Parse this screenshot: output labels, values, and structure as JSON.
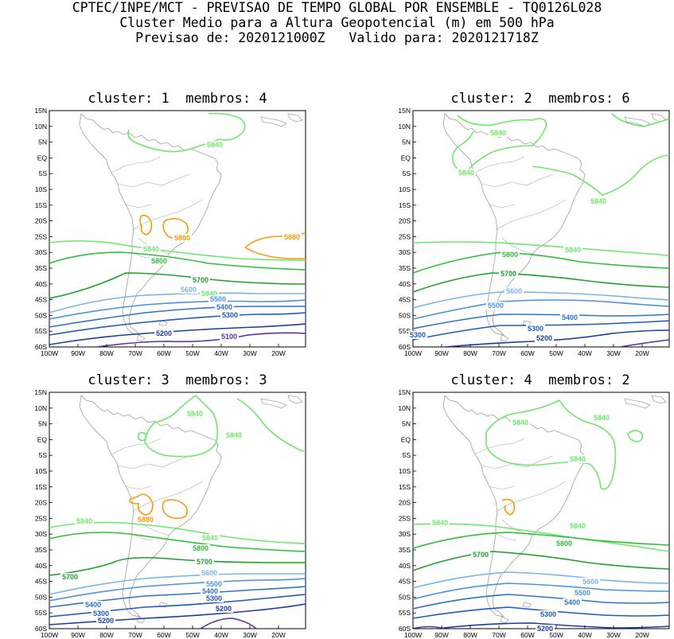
{
  "header": {
    "line1": "CPTEC/INPE/MCT - PREVISAO DE TEMPO GLOBAL POR ENSEMBLE - TQ0126L028",
    "line2": "Cluster Medio para a Altura Geopotencial (m) em 500 hPa",
    "line3": "Previsao de: 2020121000Z   Valido para: 2020121718Z"
  },
  "axes": {
    "lat_labels": [
      "15N",
      "10N",
      "5N",
      "EQ",
      "5S",
      "10S",
      "15S",
      "20S",
      "25S",
      "30S",
      "35S",
      "40S",
      "45S",
      "50S",
      "55S",
      "60S"
    ],
    "lon_labels": [
      "100W",
      "90W",
      "80W",
      "70W",
      "60W",
      "50W",
      "40W",
      "30W",
      "20W"
    ]
  },
  "colors": {
    "c5100": "#5a2fa8",
    "c5200": "#1c3f9e",
    "c5300": "#1f5bb8",
    "c5400": "#2f74c8",
    "c5500": "#4c93dc",
    "c5600": "#7ab5ea",
    "c5700": "#1fa02c",
    "c5800": "#2fbf3a",
    "c5840": "#6ee86a",
    "c5880": "#f59a0c",
    "coast": "#a8a8a8"
  },
  "panels": [
    {
      "title": "cluster: 1  membros: 4",
      "labels": [
        {
          "text": "5840",
          "level": 5840
        },
        {
          "text": "5840",
          "level": 5840
        },
        {
          "text": "5880",
          "level": 5880
        },
        {
          "text": "5880",
          "level": 5880
        },
        {
          "text": "5840",
          "level": 5840
        },
        {
          "text": "5800",
          "level": 5800
        },
        {
          "text": "5700",
          "level": 5700
        },
        {
          "text": "5600",
          "level": 5600
        },
        {
          "text": "5500",
          "level": 5500
        },
        {
          "text": "5400",
          "level": 5400
        },
        {
          "text": "5300",
          "level": 5300
        },
        {
          "text": "5200",
          "level": 5200
        },
        {
          "text": "5100",
          "level": 5100
        }
      ]
    },
    {
      "title": "cluster: 2  membros: 6",
      "labels": [
        {
          "text": "5840",
          "level": 5840
        },
        {
          "text": "5840",
          "level": 5840
        },
        {
          "text": "5840",
          "level": 5840
        },
        {
          "text": "5840",
          "level": 5840
        },
        {
          "text": "5800",
          "level": 5800
        },
        {
          "text": "5700",
          "level": 5700
        },
        {
          "text": "5600",
          "level": 5600
        },
        {
          "text": "5500",
          "level": 5500
        },
        {
          "text": "5400",
          "level": 5400
        },
        {
          "text": "5300",
          "level": 5300
        },
        {
          "text": "5300",
          "level": 5300
        },
        {
          "text": "5200",
          "level": 5200
        }
      ]
    },
    {
      "title": "cluster: 3  membros: 3",
      "labels": [
        {
          "text": "5840",
          "level": 5840
        },
        {
          "text": "5840",
          "level": 5840
        },
        {
          "text": "5880",
          "level": 5880
        },
        {
          "text": "5840",
          "level": 5840
        },
        {
          "text": "5840",
          "level": 5840
        },
        {
          "text": "5800",
          "level": 5800
        },
        {
          "text": "5700",
          "level": 5700
        },
        {
          "text": "5700",
          "level": 5700
        },
        {
          "text": "5600",
          "level": 5600
        },
        {
          "text": "5500",
          "level": 5500
        },
        {
          "text": "5400",
          "level": 5400
        },
        {
          "text": "5400",
          "level": 5400
        },
        {
          "text": "5300",
          "level": 5300
        },
        {
          "text": "5300",
          "level": 5300
        },
        {
          "text": "5200",
          "level": 5200
        },
        {
          "text": "5200",
          "level": 5200
        }
      ]
    },
    {
      "title": "cluster: 4  membros: 2",
      "labels": [
        {
          "text": "5840",
          "level": 5840
        },
        {
          "text": "5840",
          "level": 5840
        },
        {
          "text": "5840",
          "level": 5840
        },
        {
          "text": "5840",
          "level": 5840
        },
        {
          "text": "5840",
          "level": 5840
        },
        {
          "text": "5800",
          "level": 5800
        },
        {
          "text": "5700",
          "level": 5700
        },
        {
          "text": "5600",
          "level": 5600
        },
        {
          "text": "5500",
          "level": 5500
        },
        {
          "text": "5400",
          "level": 5400
        },
        {
          "text": "5300",
          "level": 5300
        },
        {
          "text": "5200",
          "level": 5200
        }
      ]
    }
  ]
}
